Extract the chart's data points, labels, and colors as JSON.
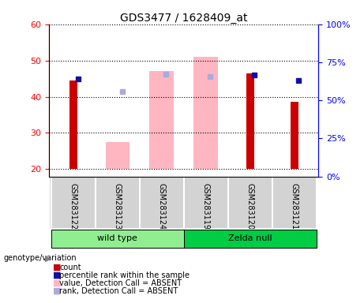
{
  "title": "GDS3477 / 1628409_at",
  "samples": [
    "GSM283122",
    "GSM283123",
    "GSM283124",
    "GSM283119",
    "GSM283120",
    "GSM283121"
  ],
  "ylim_left": [
    18,
    60
  ],
  "ylim_right": [
    0,
    100
  ],
  "yticks_left": [
    20,
    30,
    40,
    50,
    60
  ],
  "yticks_right": [
    0,
    25,
    50,
    75,
    100
  ],
  "ytick_labels_right": [
    "0%",
    "25%",
    "50%",
    "75%",
    "100%"
  ],
  "red_bars": [
    44.5,
    null,
    null,
    null,
    46.5,
    38.5
  ],
  "pink_bars": [
    null,
    27.5,
    47.0,
    51.0,
    null,
    null
  ],
  "blue_dots": [
    45.0,
    null,
    null,
    null,
    46.0,
    44.5
  ],
  "lavender_dots": [
    null,
    41.5,
    46.2,
    45.5,
    null,
    null
  ],
  "bar_bottom": 20,
  "red_color": "#CC0000",
  "pink_color": "#FFB6C1",
  "blue_color": "#1111AA",
  "lavender_color": "#AAAADD",
  "legend_items": [
    {
      "label": "count",
      "color": "#CC0000"
    },
    {
      "label": "percentile rank within the sample",
      "color": "#1111AA"
    },
    {
      "label": "value, Detection Call = ABSENT",
      "color": "#FFB6C1"
    },
    {
      "label": "rank, Detection Call = ABSENT",
      "color": "#AAAADD"
    }
  ],
  "genotype_label": "genotype/variation",
  "wt_color": "#90EE90",
  "null_color": "#00CC44",
  "sample_bg": "#D3D3D3",
  "ylabel_left_color": "red",
  "ylabel_right_color": "blue"
}
